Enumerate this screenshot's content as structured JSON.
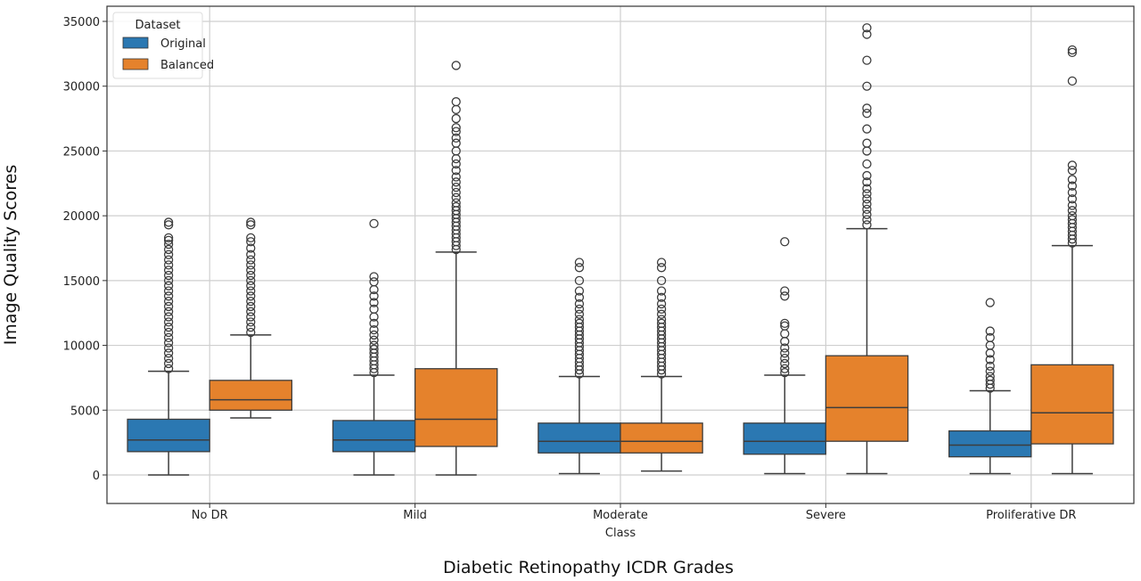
{
  "chart_data": {
    "type": "box",
    "xlabel": "Class",
    "ylabel": "Image Quality Scores",
    "caption": "Diabetic Retinopathy ICDR Grades",
    "categories": [
      "No DR",
      "Mild",
      "Moderate",
      "Severe",
      "Proliferative DR"
    ],
    "ylim": [
      0,
      35000
    ],
    "yticks": [
      0,
      5000,
      10000,
      15000,
      20000,
      25000,
      30000,
      35000
    ],
    "grid": true,
    "legend": {
      "title": "Dataset",
      "position": "top-left"
    },
    "series": [
      {
        "name": "Original",
        "color": "#2b78b2",
        "boxes": [
          {
            "whislo": 0,
            "q1": 1800,
            "med": 2700,
            "q3": 4300,
            "whishi": 8000,
            "outliers": [
              8200,
              8600,
              9000,
              9400,
              9800,
              10200,
              10600,
              11000,
              11400,
              11800,
              12200,
              12600,
              13000,
              13400,
              13800,
              14200,
              14600,
              15000,
              15400,
              15800,
              16200,
              16600,
              17000,
              17400,
              17800,
              18100,
              18300,
              19300,
              19500
            ]
          },
          {
            "whislo": 0,
            "q1": 1800,
            "med": 2700,
            "q3": 4200,
            "whishi": 7700,
            "outliers": [
              7900,
              8200,
              8500,
              8800,
              9100,
              9400,
              9700,
              10000,
              10400,
              10800,
              11200,
              11700,
              12200,
              12800,
              13300,
              13800,
              14300,
              14900,
              15300,
              19400
            ]
          },
          {
            "whislo": 100,
            "q1": 1700,
            "med": 2600,
            "q3": 4000,
            "whishi": 7600,
            "outliers": [
              7800,
              8100,
              8400,
              8700,
              9000,
              9300,
              9600,
              9900,
              10200,
              10500,
              10800,
              11100,
              11400,
              11700,
              12000,
              12400,
              12800,
              13200,
              13700,
              14200,
              15000,
              16000,
              16400
            ]
          },
          {
            "whislo": 100,
            "q1": 1600,
            "med": 2600,
            "q3": 4000,
            "whishi": 7700,
            "outliers": [
              7900,
              8200,
              8600,
              9000,
              9400,
              9800,
              10300,
              10900,
              11500,
              11700,
              13800,
              14200,
              18000
            ]
          },
          {
            "whislo": 100,
            "q1": 1400,
            "med": 2300,
            "q3": 3400,
            "whishi": 6500,
            "outliers": [
              6700,
              7000,
              7300,
              7600,
              8000,
              8400,
              8900,
              9400,
              10000,
              10600,
              11100,
              13300
            ]
          }
        ]
      },
      {
        "name": "Balanced",
        "color": "#e5822c",
        "boxes": [
          {
            "whislo": 4400,
            "q1": 5000,
            "med": 5800,
            "q3": 7300,
            "whishi": 10800,
            "outliers": [
              11000,
              11400,
              11800,
              12200,
              12600,
              13000,
              13400,
              13800,
              14200,
              14600,
              15000,
              15400,
              15800,
              16200,
              16600,
              17000,
              17500,
              18000,
              18300,
              19300,
              19500
            ]
          },
          {
            "whislo": 0,
            "q1": 2200,
            "med": 4300,
            "q3": 8200,
            "whishi": 17200,
            "outliers": [
              17400,
              17700,
              18000,
              18300,
              18600,
              18900,
              19200,
              19500,
              19800,
              20100,
              20400,
              20700,
              21000,
              21400,
              21800,
              22200,
              22600,
              23000,
              23500,
              24000,
              24400,
              25000,
              25600,
              26000,
              26500,
              26800,
              27500,
              28200,
              28800,
              31600
            ]
          },
          {
            "whislo": 300,
            "q1": 1700,
            "med": 2600,
            "q3": 4000,
            "whishi": 7600,
            "outliers": [
              7800,
              8100,
              8400,
              8700,
              9000,
              9300,
              9600,
              9900,
              10200,
              10500,
              10800,
              11100,
              11400,
              11700,
              12000,
              12400,
              12800,
              13200,
              13700,
              14200,
              15000,
              16000,
              16400
            ]
          },
          {
            "whislo": 100,
            "q1": 2600,
            "med": 5200,
            "q3": 9200,
            "whishi": 19000,
            "outliers": [
              19300,
              19700,
              20100,
              20500,
              20900,
              21300,
              21700,
              22100,
              22600,
              23100,
              24000,
              25000,
              25600,
              26700,
              27900,
              28300,
              30000,
              32000,
              34000,
              34500
            ]
          },
          {
            "whislo": 100,
            "q1": 2400,
            "med": 4800,
            "q3": 8500,
            "whishi": 17700,
            "outliers": [
              17900,
              18200,
              18500,
              18800,
              19100,
              19400,
              19700,
              20000,
              20400,
              20800,
              21300,
              21800,
              22300,
              22800,
              23500,
              23900,
              30400,
              32600,
              32800
            ]
          }
        ]
      }
    ]
  }
}
